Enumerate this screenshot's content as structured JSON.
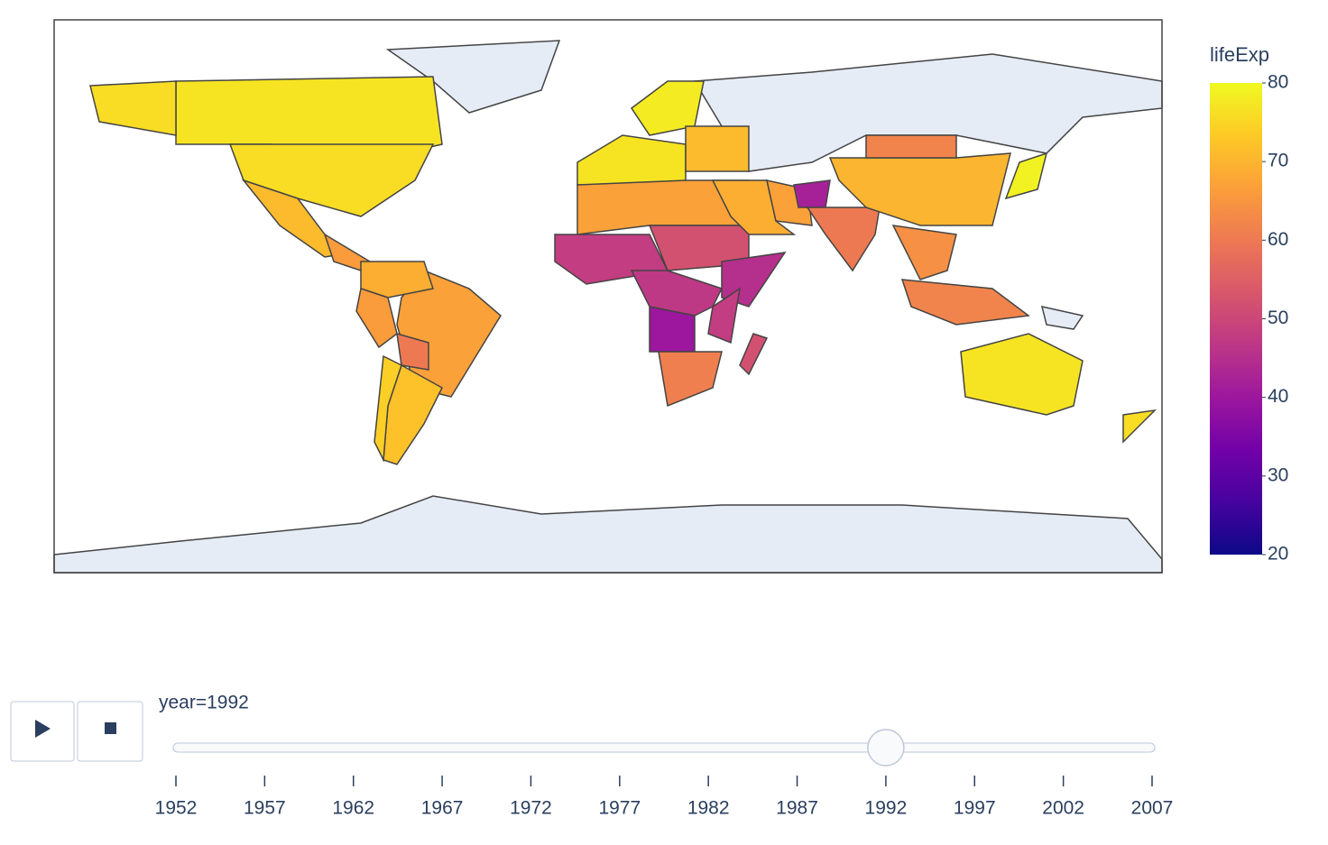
{
  "chart_data": {
    "type": "choropleth",
    "values": [
      77,
      76,
      76,
      71,
      66,
      67,
      69,
      66,
      60,
      72,
      74,
      77,
      78,
      71,
      67,
      48,
      52,
      45,
      47,
      40,
      48,
      61,
      52,
      69,
      67,
      42,
      60,
      70,
      62,
      64,
      62,
      79,
      77,
      76
    ],
    "colorbar_title": "lifeExp",
    "zlim": [
      20,
      80
    ],
    "zticks": [
      20,
      30,
      40,
      50,
      60,
      70,
      80
    ],
    "colorscale": [
      "#0d0887",
      "#46039f",
      "#7201a8",
      "#9c179e",
      "#bd3786",
      "#d8576b",
      "#ed7953",
      "#fb9f3a",
      "#fdca26",
      "#f0f921"
    ],
    "slider": {
      "label": "year=1992",
      "active": 1992,
      "steps": [
        1952,
        1957,
        1962,
        1967,
        1972,
        1977,
        1982,
        1987,
        1992,
        1997,
        2002,
        2007
      ]
    }
  }
}
